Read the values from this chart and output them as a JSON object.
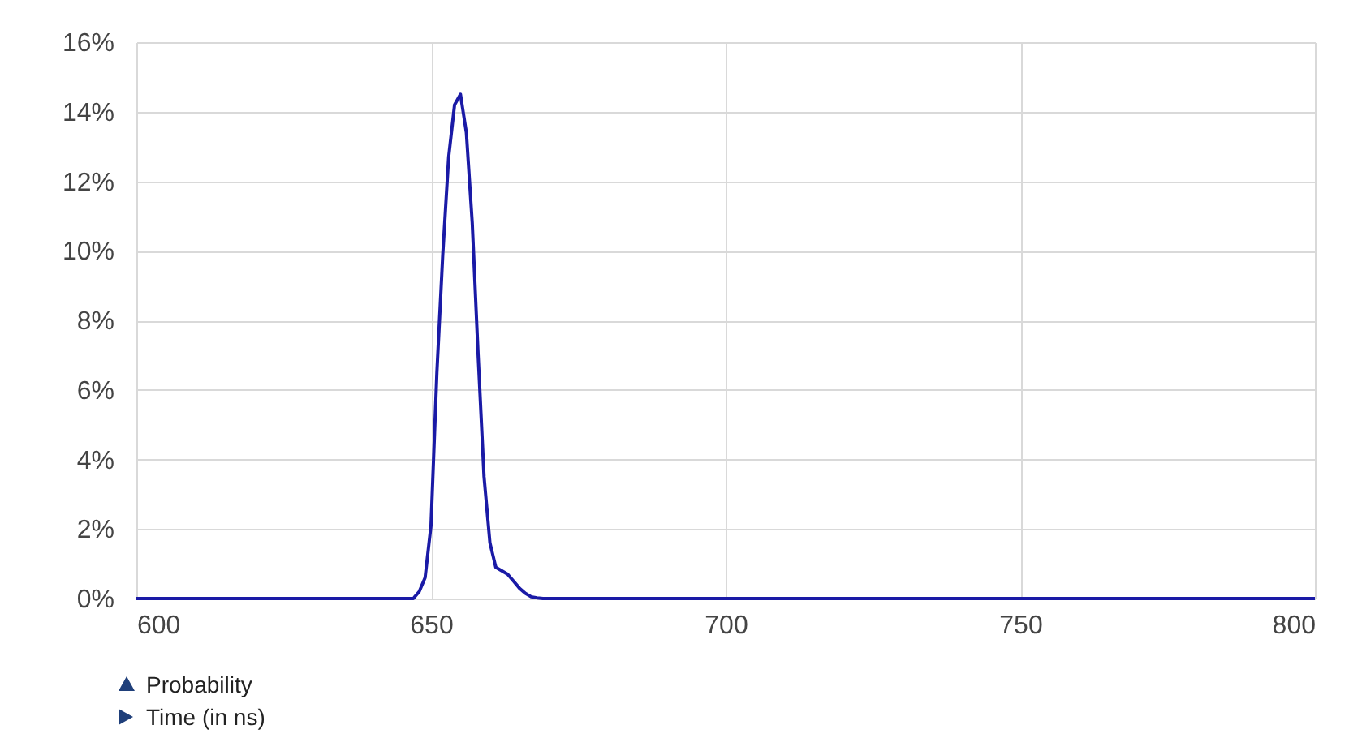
{
  "chart_data": {
    "type": "line",
    "annotations": [
      "Probability",
      "Time (in ns)"
    ],
    "x": [
      600,
      647,
      648,
      649,
      650,
      651,
      652,
      653,
      654,
      655,
      656,
      657,
      658,
      659,
      660,
      661,
      662,
      663,
      664,
      665,
      666,
      667,
      668,
      669,
      800
    ],
    "series": [
      {
        "color": "#1a1aa6",
        "values": [
          0,
          0,
          0.2,
          0.6,
          2.1,
          6.5,
          9.9,
          12.7,
          14.2,
          14.5,
          13.4,
          10.8,
          7.0,
          3.5,
          1.6,
          0.9,
          0.8,
          0.7,
          0.5,
          0.3,
          0.15,
          0.05,
          0.02,
          0,
          0
        ]
      }
    ],
    "xlim": [
      600,
      800
    ],
    "xticks": [
      600,
      650,
      700,
      750,
      800
    ],
    "ylim": [
      0,
      16
    ],
    "yticks": [
      {
        "value": 0,
        "label": "0%"
      },
      {
        "value": 2,
        "label": "2%"
      },
      {
        "value": 4,
        "label": "4%"
      },
      {
        "value": 6,
        "label": "6%"
      },
      {
        "value": 8,
        "label": "8%"
      },
      {
        "value": 10,
        "label": "10%"
      },
      {
        "value": 12,
        "label": "12%"
      },
      {
        "value": 14,
        "label": "14%"
      },
      {
        "value": 16,
        "label": "16%"
      }
    ],
    "grid": true,
    "marker": "none",
    "line_style": "solid",
    "legend": false
  }
}
